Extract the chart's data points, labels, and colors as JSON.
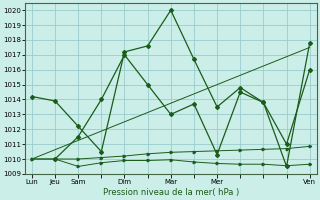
{
  "title": "",
  "xlabel": "Pression niveau de la mer( hPa )",
  "background_color": "#cceee8",
  "grid_color": "#99cccc",
  "line_color": "#1a5c1a",
  "ylim": [
    1009,
    1020.5
  ],
  "yticks": [
    1009,
    1010,
    1011,
    1012,
    1013,
    1014,
    1015,
    1016,
    1017,
    1018,
    1019,
    1020
  ],
  "xtick_labels": [
    "Lun",
    "Jeu",
    "Sam",
    "",
    "Dim",
    "",
    "Mar",
    "",
    "Mer",
    "",
    "",
    "",
    "Ven"
  ],
  "xtick_positions": [
    0,
    1,
    2,
    3,
    4,
    5,
    6,
    7,
    8,
    9,
    10,
    11,
    12
  ],
  "series1_x": [
    0,
    1,
    2,
    3,
    4,
    5,
    6,
    7,
    8,
    9,
    10,
    11,
    12
  ],
  "series1_y": [
    1014.2,
    1013.9,
    1012.2,
    1010.5,
    1017.2,
    1017.6,
    1020.0,
    1016.7,
    1013.5,
    1014.8,
    1013.8,
    1009.5,
    1017.8
  ],
  "series2_x": [
    1,
    2,
    3,
    4,
    5,
    6,
    7,
    8,
    9,
    10,
    11,
    12
  ],
  "series2_y": [
    1010.0,
    1011.5,
    1014.0,
    1017.0,
    1015.0,
    1013.0,
    1013.7,
    1010.3,
    1014.5,
    1013.8,
    1011.0,
    1016.0
  ],
  "series3_x": [
    0,
    1,
    2,
    3,
    4,
    5,
    6,
    7,
    8,
    9,
    10,
    11,
    12
  ],
  "series3_y": [
    1010.0,
    1010.0,
    1010.0,
    1010.1,
    1010.2,
    1010.35,
    1010.45,
    1010.5,
    1010.55,
    1010.6,
    1010.65,
    1010.7,
    1010.85
  ],
  "series4_x": [
    0,
    1,
    2,
    3,
    4,
    5,
    6,
    7,
    8,
    9,
    10,
    11,
    12
  ],
  "series4_y": [
    1010.0,
    1010.0,
    1009.5,
    1009.75,
    1009.9,
    1009.9,
    1009.95,
    1009.8,
    1009.7,
    1009.65,
    1009.65,
    1009.55,
    1009.65
  ],
  "series5_x": [
    0,
    12
  ],
  "series5_y": [
    1010.0,
    1017.5
  ]
}
